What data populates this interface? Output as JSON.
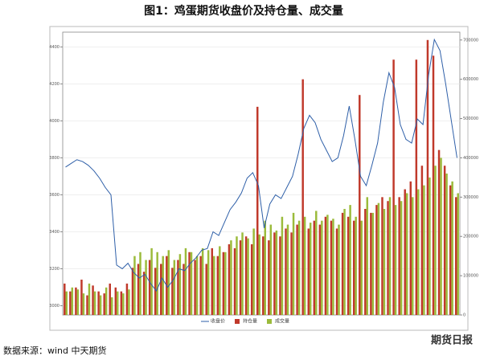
{
  "chart_data": {
    "type": "bar-line",
    "title": "图1：鸡蛋期货收盘价及持仓量、成交量",
    "source": "数据来源：wind 中天期货",
    "watermark": "期货日报",
    "categories": [
      null,
      null,
      null,
      null,
      null,
      null,
      null,
      null,
      null,
      null,
      null,
      null,
      null,
      null,
      null,
      null,
      null,
      null,
      null,
      null,
      null,
      null,
      null,
      null,
      null,
      null,
      null,
      null,
      null,
      null,
      null,
      null,
      null,
      null,
      null,
      null,
      null,
      null,
      null,
      null,
      null,
      null,
      null,
      null,
      null,
      null,
      null,
      null,
      null,
      null,
      null,
      null,
      null,
      null,
      null,
      null,
      null,
      null,
      null,
      null,
      null,
      null,
      null,
      null,
      null,
      null,
      null,
      null,
      null,
      null
    ],
    "ylim": [
      2950,
      4480
    ],
    "yticks": [
      3000,
      3200,
      3400,
      3600,
      3800,
      4000,
      4200,
      4400
    ],
    "y2lim": [
      0,
      720000
    ],
    "y2ticks": [
      0,
      100000,
      200000,
      300000,
      400000,
      500000,
      600000,
      700000
    ],
    "grid": true,
    "series": [
      {
        "name": "收盘价",
        "kind": "line",
        "color": "#2e5fa8",
        "values": [
          3750,
          3770,
          3790,
          3780,
          3760,
          3730,
          3690,
          3640,
          3600,
          3220,
          3200,
          3230,
          3180,
          3150,
          3170,
          3120,
          3080,
          3150,
          3100,
          3140,
          3200,
          3190,
          3230,
          3260,
          3300,
          3310,
          3400,
          3380,
          3450,
          3520,
          3560,
          3610,
          3690,
          3720,
          3650,
          3420,
          3550,
          3600,
          3580,
          3640,
          3700,
          3820,
          3960,
          4030,
          3990,
          3900,
          3840,
          3780,
          3800,
          3920,
          4080,
          3900,
          3700,
          3650,
          3760,
          3880,
          4100,
          4260,
          4180,
          3980,
          3900,
          3880,
          4010,
          3980,
          4250,
          4440,
          4380,
          4200,
          4000,
          3800
        ]
      },
      {
        "name": "持仓量",
        "kind": "bar",
        "axis": "y2",
        "color": "#c0392b",
        "values": [
          80000,
          60000,
          70000,
          90000,
          50000,
          75000,
          60000,
          55000,
          80000,
          70000,
          60000,
          80000,
          120000,
          130000,
          110000,
          140000,
          120000,
          130000,
          150000,
          120000,
          140000,
          130000,
          160000,
          140000,
          150000,
          130000,
          170000,
          150000,
          160000,
          180000,
          170000,
          190000,
          200000,
          180000,
          530000,
          200000,
          190000,
          210000,
          200000,
          220000,
          210000,
          230000,
          600000,
          220000,
          240000,
          230000,
          250000,
          240000,
          220000,
          260000,
          250000,
          240000,
          560000,
          270000,
          260000,
          280000,
          300000,
          290000,
          650000,
          300000,
          320000,
          340000,
          650000,
          380000,
          700000,
          660000,
          420000,
          380000,
          330000,
          300000
        ]
      },
      {
        "name": "成交量",
        "kind": "bar",
        "axis": "y2",
        "color": "#9bbb3b",
        "values": [
          60000,
          70000,
          65000,
          55000,
          80000,
          60000,
          50000,
          70000,
          45000,
          60000,
          55000,
          65000,
          150000,
          160000,
          140000,
          170000,
          160000,
          150000,
          165000,
          140000,
          155000,
          170000,
          160000,
          150000,
          170000,
          165000,
          150000,
          175000,
          160000,
          190000,
          200000,
          210000,
          195000,
          220000,
          205000,
          240000,
          230000,
          215000,
          250000,
          230000,
          260000,
          240000,
          250000,
          235000,
          265000,
          240000,
          255000,
          245000,
          230000,
          270000,
          280000,
          250000,
          240000,
          300000,
          260000,
          285000,
          270000,
          300000,
          280000,
          290000,
          310000,
          300000,
          320000,
          330000,
          350000,
          380000,
          400000,
          360000,
          340000,
          310000
        ]
      }
    ]
  }
}
